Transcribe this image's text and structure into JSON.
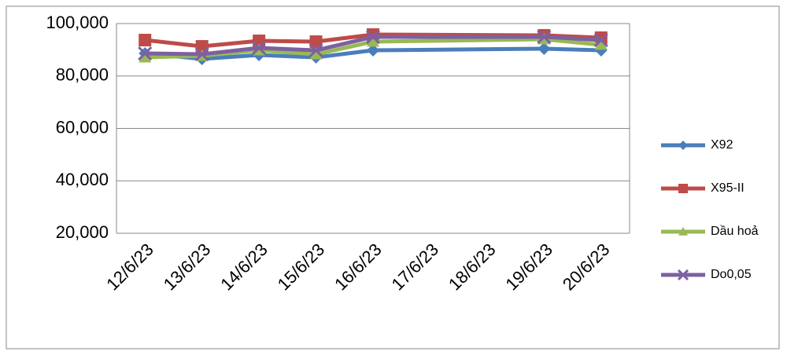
{
  "chart_data": {
    "type": "line",
    "categories": [
      "12/6/23",
      "13/6/23",
      "14/6/23",
      "15/6/23",
      "16/6/23",
      "17/6/23",
      "18/6/23",
      "19/6/23",
      "20/6/23"
    ],
    "series": [
      {
        "name": "X92",
        "color": "#4a7ebb",
        "marker": "diamond",
        "values": [
          88600,
          86500,
          88000,
          87100,
          89800,
          null,
          null,
          90400,
          89800
        ]
      },
      {
        "name": "X95-II",
        "color": "#be4b48",
        "marker": "square",
        "values": [
          93700,
          91300,
          93400,
          93100,
          95800,
          null,
          null,
          95500,
          94600
        ]
      },
      {
        "name": "Dầu hoả",
        "color": "#98b954",
        "marker": "triangle",
        "values": [
          87100,
          87700,
          89800,
          88300,
          93100,
          null,
          null,
          94000,
          91900
        ]
      },
      {
        "name": "Do0,05",
        "color": "#7d60a0",
        "marker": "x",
        "values": [
          88600,
          88300,
          90700,
          89800,
          94900,
          null,
          null,
          94900,
          93700
        ]
      }
    ],
    "ylim": [
      20000,
      100000
    ],
    "yticks": [
      {
        "value": 20000,
        "label": "20,000"
      },
      {
        "value": 40000,
        "label": "40,000"
      },
      {
        "value": 60000,
        "label": "60,000"
      },
      {
        "value": 80000,
        "label": "80,000"
      },
      {
        "value": 100000,
        "label": "100,000"
      }
    ],
    "grid": true,
    "span_gaps": true,
    "legend": "right"
  }
}
